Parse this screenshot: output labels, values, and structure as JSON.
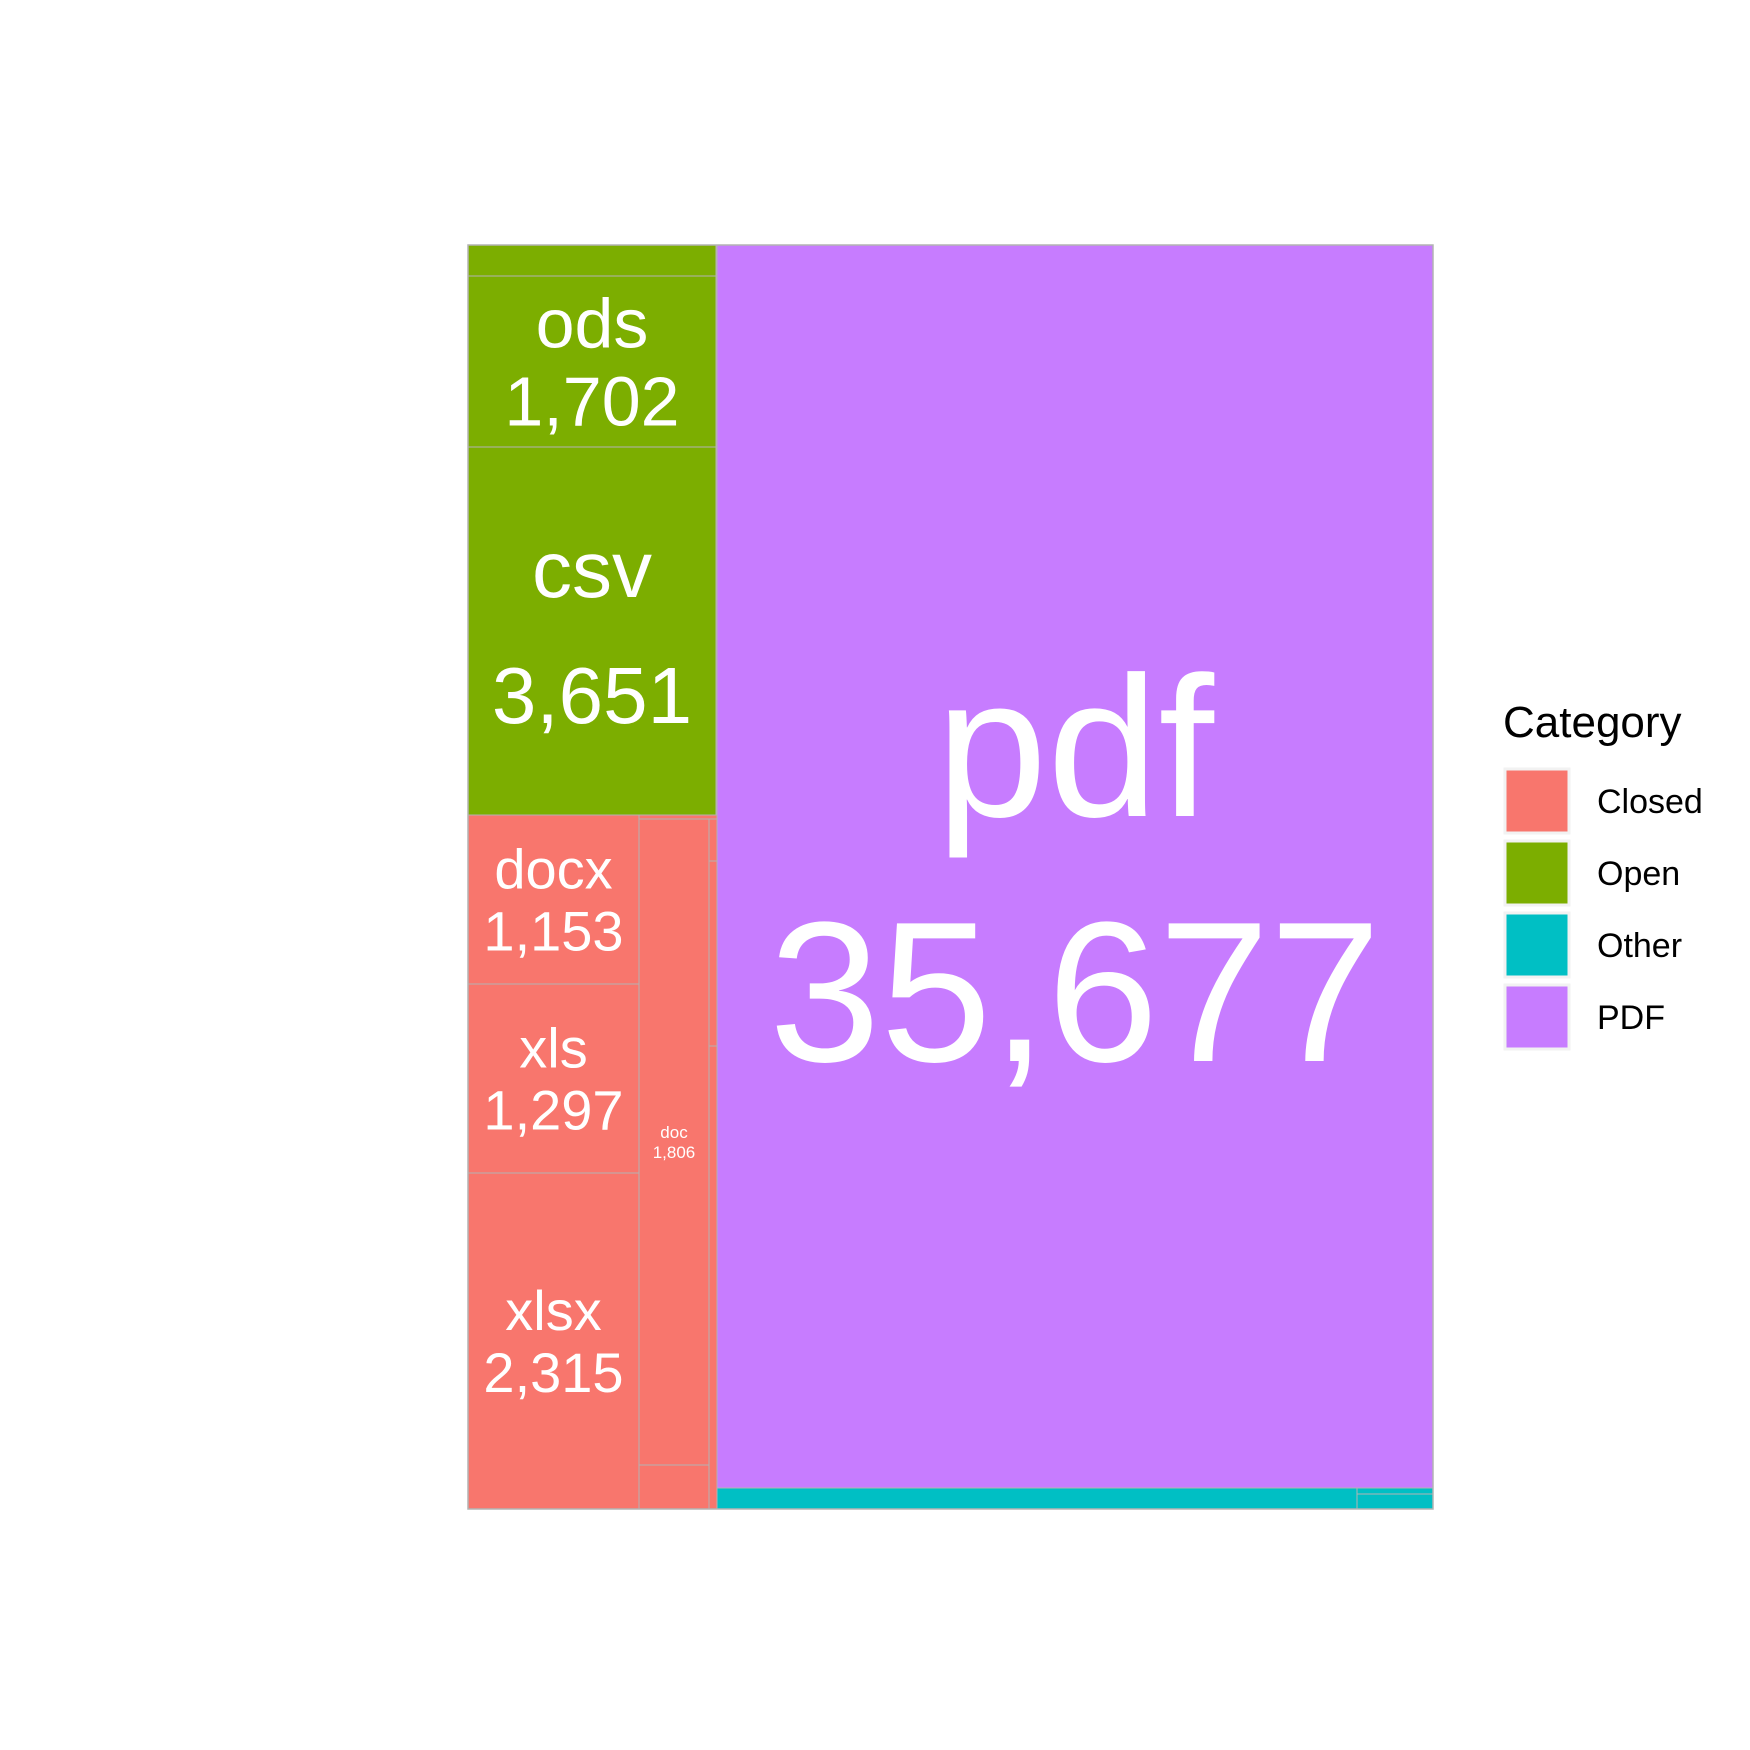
{
  "chart_data": {
    "type": "treemap",
    "title": "",
    "legend": {
      "title": "Category",
      "placement": "right",
      "entries": [
        {
          "name": "Closed",
          "color": "#F8766D"
        },
        {
          "name": "Open",
          "color": "#7CAE00"
        },
        {
          "name": "Other",
          "color": "#00BFC4"
        },
        {
          "name": "PDF",
          "color": "#C77CFF"
        }
      ]
    },
    "tiles": [
      {
        "label": "pdf",
        "value": "35,677",
        "category": "PDF"
      },
      {
        "label": "csv",
        "value": "3,651",
        "category": "Open"
      },
      {
        "label": "ods",
        "value": "1,702",
        "category": "Open"
      },
      {
        "label": "xlsx",
        "value": "2,315",
        "category": "Closed"
      },
      {
        "label": "doc",
        "value": "1,806",
        "category": "Closed"
      },
      {
        "label": "xls",
        "value": "1,297",
        "category": "Closed"
      },
      {
        "label": "docx",
        "value": "1,153",
        "category": "Closed"
      }
    ]
  }
}
